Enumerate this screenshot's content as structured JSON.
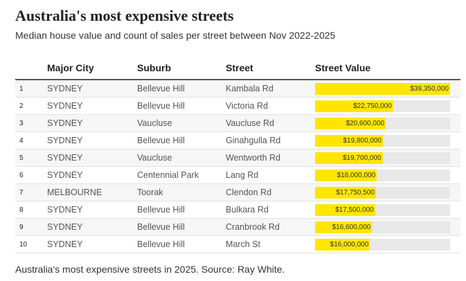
{
  "title": "Australia's most expensive streets",
  "subtitle": "Median house value and count of sales per street between Nov 2022-2025",
  "table": {
    "headers": [
      "Major City",
      "Suburb",
      "Street",
      "Street Value"
    ],
    "rows": [
      {
        "rank": 1,
        "city": "SYDNEY",
        "suburb": "Bellevue Hill",
        "street": "Kambala Rd"
      },
      {
        "rank": 2,
        "city": "SYDNEY",
        "suburb": "Bellevue Hill",
        "street": "Victoria Rd"
      },
      {
        "rank": 3,
        "city": "SYDNEY",
        "suburb": "Vaucluse",
        "street": "Vaucluse Rd"
      },
      {
        "rank": 4,
        "city": "SYDNEY",
        "suburb": "Bellevue Hill",
        "street": "Ginahgulla Rd"
      },
      {
        "rank": 5,
        "city": "SYDNEY",
        "suburb": "Vaucluse",
        "street": "Wentworth Rd"
      },
      {
        "rank": 6,
        "city": "SYDNEY",
        "suburb": "Centennial Park",
        "street": "Lang Rd"
      },
      {
        "rank": 7,
        "city": "MELBOURNE",
        "suburb": "Toorak",
        "street": "Clendon Rd"
      },
      {
        "rank": 8,
        "city": "SYDNEY",
        "suburb": "Bellevue Hill",
        "street": "Bulkara Rd"
      },
      {
        "rank": 9,
        "city": "SYDNEY",
        "suburb": "Bellevue Hill",
        "street": "Cranbrook Rd"
      },
      {
        "rank": 10,
        "city": "SYDNEY",
        "suburb": "Bellevue Hill",
        "street": "March St"
      }
    ],
    "values": [
      39350000,
      22750000,
      20600000,
      19800000,
      19700000,
      18000000,
      17750500,
      17500000,
      16600000,
      16000000
    ],
    "value_labels": [
      "$39,350,000",
      "$22,750,000",
      "$20,600,000",
      "$19,800,000",
      "$19,700,000",
      "$18,000,000",
      "$17,750,500",
      "$17,500,000",
      "$16,600,000",
      "$16,000,000"
    ],
    "bar_color": "#ffe600"
  },
  "caption": "Australia's most expensive streets in 2025. Source: Ray White."
}
